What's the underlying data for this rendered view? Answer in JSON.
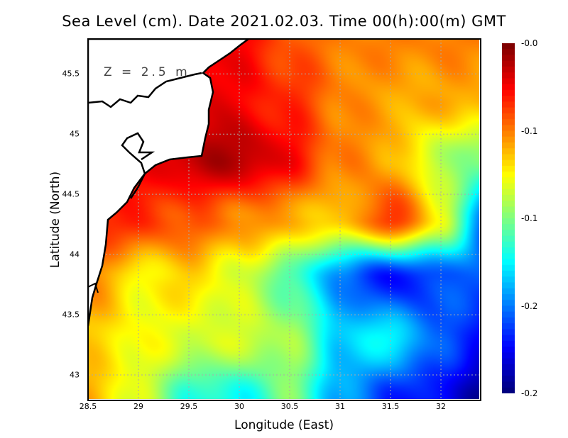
{
  "chart_data": {
    "type": "heatmap",
    "title": "Sea Level (cm). Date 2021.02.03. Time 00(h):00(m) GMT",
    "annotation": "Z = 2.5 m",
    "xlabel": "Longitude (East)",
    "ylabel": "Latitude (North)",
    "xlim": [
      28.5,
      32.38
    ],
    "ylim": [
      42.8,
      45.79
    ],
    "xticks": [
      "28.5",
      "29",
      "29.5",
      "30",
      "30.5",
      "31",
      "31.5",
      "32"
    ],
    "xtick_values": [
      28.5,
      29,
      29.5,
      30,
      30.5,
      31,
      31.5,
      32
    ],
    "yticks": [
      "45.5",
      "45",
      "44.5",
      "44",
      "43.5",
      "43"
    ],
    "ytick_values": [
      45.5,
      45,
      44.5,
      44,
      43.5,
      43
    ],
    "grid": true,
    "colorbar": {
      "range": [
        -0.24,
        0.0
      ],
      "tick_labels": [
        "-0.0",
        "-0.1",
        "-0.1",
        "-0.2",
        "-0.2"
      ],
      "tick_values": [
        0.0,
        -0.06,
        -0.12,
        -0.18,
        -0.24
      ],
      "colormap": "jet-reversed",
      "placement": "right"
    },
    "grid_lon": [
      28.5,
      29,
      29.5,
      30,
      30.5,
      31,
      31.5,
      32,
      32.5
    ],
    "grid_lat": [
      45.8,
      45.3,
      44.8,
      44.3,
      43.8,
      43.3,
      42.8
    ],
    "values": [
      [
        null,
        null,
        null,
        -0.03,
        -0.05,
        -0.06,
        -0.06,
        -0.06,
        -0.06
      ],
      [
        null,
        null,
        null,
        -0.03,
        -0.04,
        -0.06,
        -0.07,
        -0.07,
        -0.07
      ],
      [
        null,
        -0.03,
        -0.015,
        -0.01,
        -0.03,
        -0.06,
        -0.07,
        -0.11,
        -0.12
      ],
      [
        -0.035,
        -0.04,
        -0.05,
        -0.06,
        -0.07,
        -0.08,
        -0.04,
        -0.09,
        -0.2
      ],
      [
        -0.06,
        -0.09,
        -0.08,
        -0.1,
        -0.13,
        -0.18,
        -0.21,
        -0.19,
        -0.19
      ],
      [
        -0.08,
        -0.09,
        -0.1,
        -0.1,
        -0.11,
        -0.16,
        -0.15,
        -0.19,
        -0.21
      ],
      [
        -0.07,
        -0.1,
        -0.14,
        -0.15,
        -0.12,
        -0.17,
        -0.2,
        -0.21,
        -0.24
      ]
    ]
  }
}
